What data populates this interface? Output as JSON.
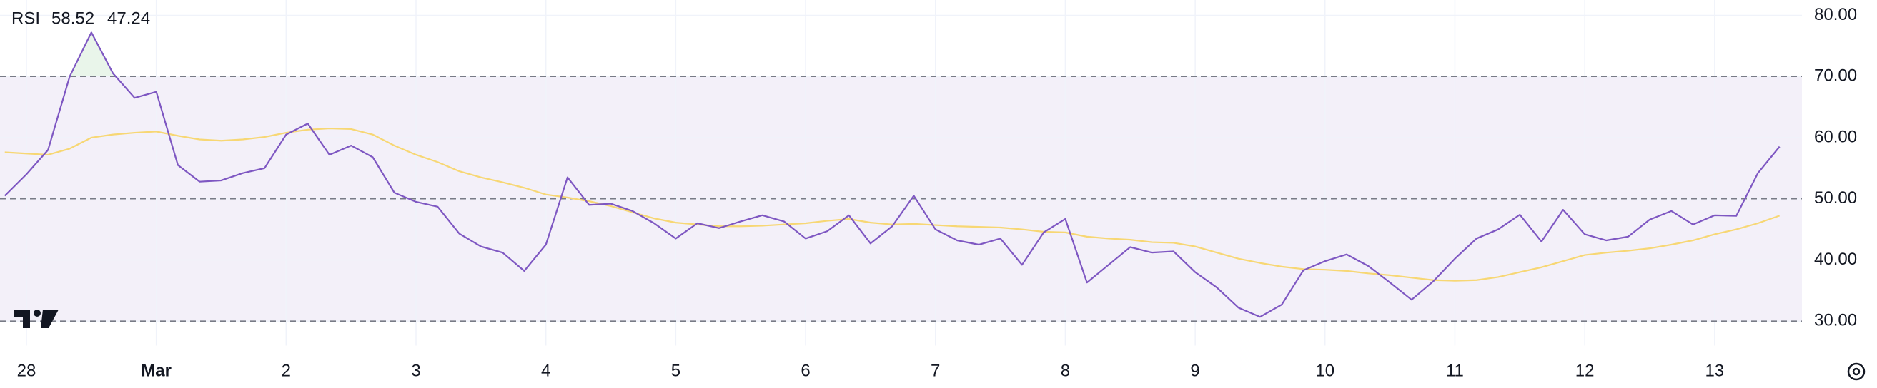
{
  "chart_data": {
    "type": "line",
    "title": "RSI",
    "categories": [
      null,
      "28",
      null,
      null,
      null,
      null,
      null,
      "Mar",
      null,
      null,
      null,
      null,
      null,
      "2",
      null,
      null,
      null,
      null,
      null,
      "3",
      null,
      null,
      null,
      null,
      null,
      "4",
      null,
      null,
      null,
      null,
      null,
      "5",
      null,
      null,
      null,
      null,
      null,
      "6",
      null,
      null,
      null,
      null,
      null,
      "7",
      null,
      null,
      null,
      null,
      null,
      "8",
      null,
      null,
      null,
      null,
      null,
      "9",
      null,
      null,
      null,
      null,
      null,
      "10",
      null,
      null,
      null,
      null,
      null,
      "11",
      null,
      null,
      null,
      null,
      null,
      "12",
      null,
      null,
      null,
      null,
      null,
      "13",
      null,
      null,
      null
    ],
    "series": [
      {
        "name": "RSI",
        "color": "#7e57c2",
        "values": [
          50.5,
          54,
          58,
          70,
          77.2,
          70.5,
          66.5,
          67.5,
          55.5,
          52.8,
          53,
          54.2,
          55,
          60.5,
          62.3,
          57.2,
          58.7,
          56.8,
          51,
          49.5,
          48.7,
          44.3,
          42.2,
          41.2,
          38.2,
          42.5,
          53.5,
          49,
          49.2,
          48,
          46,
          43.5,
          46,
          45.2,
          46.3,
          47.3,
          46.3,
          43.5,
          44.7,
          47.3,
          42.7,
          45.5,
          50.5,
          45,
          43.2,
          42.5,
          43.5,
          39.2,
          44.5,
          46.7,
          36.3,
          39.2,
          42.1,
          41.2,
          41.4,
          38,
          35.5,
          32.2,
          30.7,
          32.7,
          38.3,
          39.8,
          40.9,
          39,
          36.3,
          33.5,
          36.5,
          40.2,
          43.5,
          45,
          47.4,
          43,
          48.2,
          44.2,
          43.2,
          43.8,
          46.6,
          48,
          45.8,
          47.3,
          47.2,
          54.2,
          58.52
        ]
      },
      {
        "color": "#f7d774",
        "values": [
          57.6,
          57.4,
          57.2,
          58.2,
          60,
          60.5,
          60.8,
          61,
          60.3,
          59.7,
          59.5,
          59.7,
          60.1,
          60.8,
          61.3,
          61.5,
          61.4,
          60.5,
          58.7,
          57.2,
          56,
          54.5,
          53.5,
          52.7,
          51.8,
          50.7,
          50.2,
          49.6,
          48.8,
          47.8,
          46.8,
          46.1,
          45.8,
          45.5,
          45.5,
          45.6,
          45.8,
          46,
          46.4,
          46.7,
          46.1,
          45.8,
          45.9,
          45.7,
          45.5,
          45.4,
          45.3,
          45,
          44.6,
          44.5,
          43.8,
          43.5,
          43.3,
          42.9,
          42.8,
          42.2,
          41.2,
          40.2,
          39.5,
          38.9,
          38.5,
          38.4,
          38.2,
          37.8,
          37.5,
          37.1,
          36.7,
          36.6,
          36.7,
          37.2,
          38,
          38.8,
          39.8,
          40.8,
          41.2,
          41.5,
          41.9,
          42.5,
          43.2,
          44.2,
          45,
          46,
          47.24
        ]
      }
    ],
    "ylim": [
      26,
      82.5
    ],
    "yticks": [
      {
        "value": 30,
        "label": "30.00"
      },
      {
        "value": 40,
        "label": "40.00"
      },
      {
        "value": 50,
        "label": "50.00"
      },
      {
        "value": 60,
        "label": "60.00"
      },
      {
        "value": 70,
        "label": "70.00"
      },
      {
        "value": 80,
        "label": "80.00"
      }
    ],
    "levels": [
      30,
      50,
      70
    ],
    "band_color": "rgba(126,87,194,0.09)",
    "grid": true
  }
}
